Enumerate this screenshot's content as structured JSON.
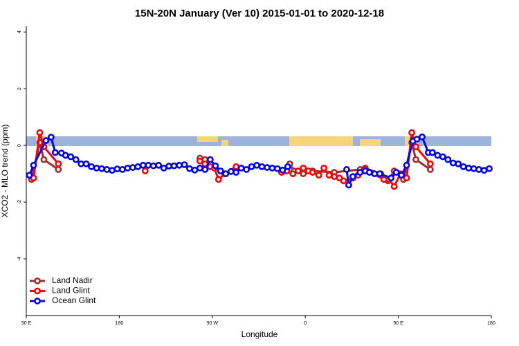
{
  "chart_data": {
    "type": "line",
    "title": "15N-20N January (Ver 10)   2015-01-01 to 2020-12-18",
    "x_label": "Longitude",
    "y_label": "XCO2 - MLO trend (ppm)",
    "xlim": [
      90,
      540
    ],
    "xticks": [
      {
        "value": 90,
        "label": "90 E"
      },
      180,
      {
        "value": 270,
        "label": "90 W"
      },
      {
        "value": 360,
        "label": "0"
      },
      {
        "value": 450,
        "label": "90 E"
      },
      {
        "value": 540,
        "label": "180"
      }
    ],
    "ylim": [
      -6,
      4.2
    ],
    "yticks": [
      -4,
      -2,
      0,
      2,
      4
    ],
    "legend": "bottom-left",
    "series": [
      {
        "name": "Land Nadir",
        "color": "#a52a2a",
        "x": [
          95,
          103,
          107,
          121,
          null,
          258,
          263,
          null,
          293,
          null,
          345,
          349,
          358,
          367,
          388,
          413,
          418,
          433,
          440,
          446,
          455,
          463,
          467,
          481
        ],
        "values": [
          -1.2,
          0.1,
          -0.5,
          -0.85,
          null,
          -0.45,
          -0.5,
          null,
          -0.8,
          null,
          -0.65,
          -0.9,
          -1.0,
          -0.9,
          -0.95,
          -0.85,
          -0.8,
          -1.0,
          -1.25,
          -0.9,
          -1.2,
          0.1,
          -0.5,
          -0.85
        ]
      },
      {
        "name": "Land Glint",
        "color": "#ff0000",
        "x": [
          97,
          103,
          107,
          121,
          null,
          205,
          null,
          258,
          263,
          268,
          272,
          276,
          282,
          293,
          null,
          337,
          342,
          348,
          353,
          358,
          363,
          367,
          373,
          378,
          383,
          388,
          393,
          397,
          406,
          411,
          417,
          436,
          441,
          446,
          452,
          458,
          463,
          467,
          481
        ],
        "values": [
          -1.15,
          0.45,
          -0.05,
          -0.65,
          null,
          -0.9,
          null,
          -0.55,
          -0.65,
          -0.75,
          -0.8,
          -1.2,
          -1.0,
          -0.75,
          null,
          -0.95,
          -0.9,
          -1.0,
          -0.9,
          -0.8,
          -0.9,
          -0.95,
          -1.05,
          -0.8,
          -1.05,
          -1.1,
          -1.15,
          -1.25,
          -1.15,
          -1.05,
          -0.85,
          -1.2,
          -1.2,
          -1.45,
          -1.0,
          -1.15,
          0.45,
          -0.05,
          -0.65
        ]
      },
      {
        "name": "Ocean Glint",
        "color": "#0000ff",
        "x": [
          93,
          97,
          109,
          114,
          118,
          124,
          128,
          133,
          138,
          143,
          148,
          153,
          158,
          163,
          168,
          173,
          178,
          183,
          188,
          193,
          198,
          203,
          208,
          213,
          218,
          223,
          228,
          233,
          238,
          243,
          248,
          253,
          258,
          263,
          268,
          273,
          278,
          283,
          288,
          293,
          298,
          303,
          308,
          313,
          318,
          323,
          328,
          333,
          338,
          343,
          null,
          400,
          402,
          406,
          413,
          418,
          422,
          427,
          432,
          443,
          448,
          453,
          458,
          464,
          468,
          473,
          479,
          483,
          488,
          493,
          498,
          503,
          508,
          513,
          518,
          523,
          528,
          533,
          538
        ],
        "values": [
          -1.05,
          -0.7,
          0.17,
          0.29,
          -0.25,
          -0.27,
          -0.35,
          -0.4,
          -0.5,
          -0.65,
          -0.65,
          -0.75,
          -0.8,
          -0.82,
          -0.85,
          -0.88,
          -0.83,
          -0.85,
          -0.8,
          -0.78,
          -0.75,
          -0.7,
          -0.7,
          -0.72,
          -0.7,
          -0.8,
          -0.73,
          -0.72,
          -0.7,
          -0.68,
          -0.82,
          -0.87,
          -0.8,
          -0.85,
          -0.5,
          -0.72,
          -0.9,
          -1.0,
          -0.92,
          -0.95,
          -0.8,
          -0.85,
          -0.75,
          -0.7,
          -0.75,
          -0.78,
          -0.8,
          -0.82,
          -0.87,
          -0.75,
          null,
          -0.85,
          -1.4,
          -1.1,
          -0.95,
          -0.9,
          -0.95,
          -1.0,
          -1.0,
          -1.15,
          -0.95,
          -1.05,
          -0.7,
          0.15,
          0.22,
          0.3,
          -0.25,
          -0.25,
          -0.35,
          -0.4,
          -0.5,
          -0.62,
          -0.65,
          -0.75,
          -0.8,
          -0.82,
          -0.85,
          -0.88,
          -0.82
        ]
      }
    ]
  }
}
